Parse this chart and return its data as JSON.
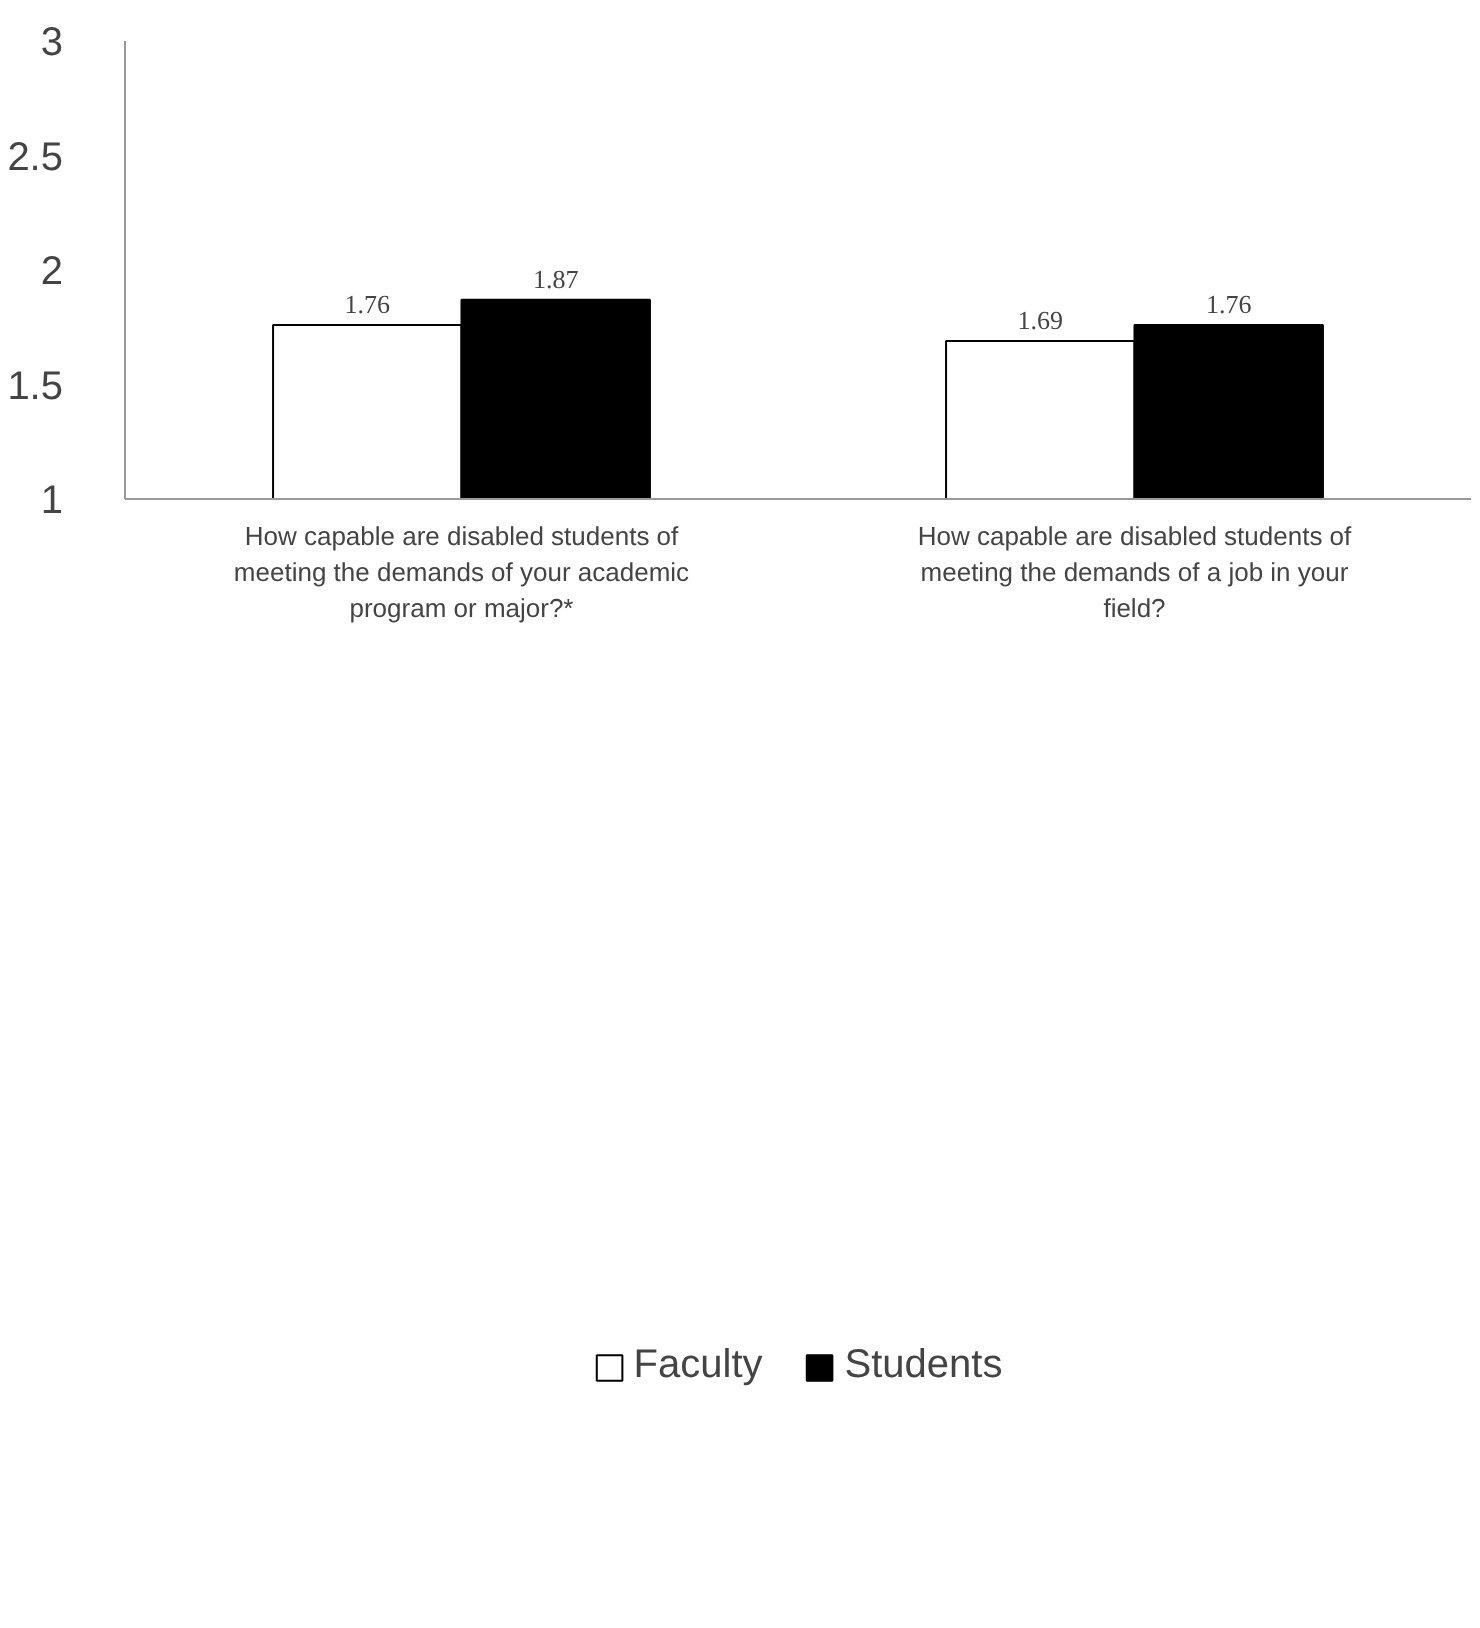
{
  "chart_data": {
    "type": "bar",
    "categories": [
      "How capable are disabled students of meeting the demands of your academic program or major?*",
      "How capable are disabled students of meeting the demands of a job in your field?"
    ],
    "series": [
      {
        "name": "Faculty",
        "color": "#ffffff",
        "values": [
          1.76,
          1.69
        ]
      },
      {
        "name": "Students",
        "color": "#000000",
        "values": [
          1.87,
          1.76
        ]
      }
    ],
    "ylim": [
      1,
      3
    ],
    "yticks": [
      1,
      1.5,
      2,
      2.5,
      3
    ],
    "grid": false,
    "legend": "bottom",
    "data_labels": true
  }
}
